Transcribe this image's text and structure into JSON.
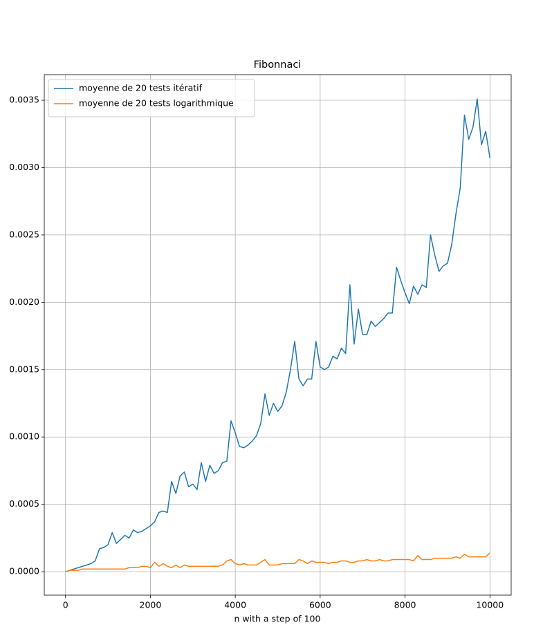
{
  "chart_data": {
    "type": "line",
    "title": "Fibonnaci",
    "xlabel": "n with a step of 100",
    "x": [
      0,
      100,
      200,
      300,
      400,
      500,
      600,
      700,
      800,
      900,
      1000,
      1100,
      1200,
      1300,
      1400,
      1500,
      1600,
      1700,
      1800,
      1900,
      2000,
      2100,
      2200,
      2300,
      2400,
      2500,
      2600,
      2700,
      2800,
      2900,
      3000,
      3100,
      3200,
      3300,
      3400,
      3500,
      3600,
      3700,
      3800,
      3900,
      4000,
      4100,
      4200,
      4300,
      4400,
      4500,
      4600,
      4700,
      4800,
      4900,
      5000,
      5100,
      5200,
      5300,
      5400,
      5500,
      5600,
      5700,
      5800,
      5900,
      6000,
      6100,
      6200,
      6300,
      6400,
      6500,
      6600,
      6700,
      6800,
      6900,
      7000,
      7100,
      7200,
      7300,
      7400,
      7500,
      7600,
      7700,
      7800,
      7900,
      8000,
      8100,
      8200,
      8300,
      8400,
      8500,
      8600,
      8700,
      8800,
      8900,
      9000,
      9100,
      9200,
      9300,
      9400,
      9500,
      9600,
      9700,
      9800,
      9900,
      10000
    ],
    "series": [
      {
        "name": "moyenne de 20 tests itératif",
        "color": "#1f77b4",
        "values": [
          0,
          1e-05,
          2e-05,
          3e-05,
          4e-05,
          5e-05,
          6e-05,
          8e-05,
          0.00017,
          0.00018,
          0.0002,
          0.00029,
          0.00021,
          0.00024,
          0.00027,
          0.00025,
          0.00031,
          0.00029,
          0.0003,
          0.00032,
          0.00034,
          0.00037,
          0.00044,
          0.00045,
          0.00044,
          0.00067,
          0.00058,
          0.00071,
          0.00074,
          0.00063,
          0.00065,
          0.00061,
          0.00081,
          0.00067,
          0.00079,
          0.00073,
          0.00075,
          0.00081,
          0.00082,
          0.00112,
          0.00103,
          0.00093,
          0.00092,
          0.00094,
          0.00097,
          0.00101,
          0.0011,
          0.00132,
          0.00116,
          0.00125,
          0.00119,
          0.00123,
          0.00133,
          0.0015,
          0.00171,
          0.00143,
          0.00138,
          0.00143,
          0.00143,
          0.00171,
          0.00152,
          0.0015,
          0.00152,
          0.0016,
          0.00158,
          0.00166,
          0.00162,
          0.00213,
          0.00169,
          0.00195,
          0.00176,
          0.00176,
          0.00186,
          0.00182,
          0.00185,
          0.00188,
          0.00192,
          0.00192,
          0.00226,
          0.00216,
          0.00207,
          0.00199,
          0.00212,
          0.00206,
          0.00213,
          0.00211,
          0.0025,
          0.00235,
          0.00223,
          0.00227,
          0.00229,
          0.00243,
          0.00266,
          0.00285,
          0.00339,
          0.00321,
          0.0033,
          0.00351,
          0.00317,
          0.00327,
          0.00307
        ]
      },
      {
        "name": "moyenne de 20 tests logarithmique",
        "color": "#ff7f0e",
        "values": [
          0,
          1e-05,
          1e-05,
          1e-05,
          2e-05,
          2e-05,
          2e-05,
          2e-05,
          2e-05,
          2e-05,
          2e-05,
          2e-05,
          2e-05,
          2e-05,
          2e-05,
          3e-05,
          3e-05,
          3e-05,
          4e-05,
          4e-05,
          3e-05,
          7e-05,
          4e-05,
          6e-05,
          4e-05,
          3e-05,
          5e-05,
          3e-05,
          5e-05,
          4e-05,
          4e-05,
          4e-05,
          4e-05,
          4e-05,
          4e-05,
          4e-05,
          4e-05,
          5e-05,
          8e-05,
          9e-05,
          6e-05,
          5e-05,
          6e-05,
          5e-05,
          5e-05,
          5e-05,
          7e-05,
          9e-05,
          5e-05,
          5e-05,
          5e-05,
          6e-05,
          6e-05,
          6e-05,
          6e-05,
          9e-05,
          8e-05,
          6e-05,
          8e-05,
          7e-05,
          7e-05,
          7e-05,
          6e-05,
          7e-05,
          7e-05,
          8e-05,
          8e-05,
          7e-05,
          7e-05,
          8e-05,
          8e-05,
          9e-05,
          8e-05,
          8e-05,
          9e-05,
          8e-05,
          8e-05,
          9e-05,
          9e-05,
          9e-05,
          9e-05,
          9e-05,
          8e-05,
          0.00012,
          9e-05,
          9e-05,
          9e-05,
          0.0001,
          0.0001,
          0.0001,
          0.0001,
          0.0001,
          0.00011,
          0.0001,
          0.00013,
          0.00011,
          0.00011,
          0.00011,
          0.00011,
          0.00011,
          0.00014
        ]
      }
    ],
    "xlim": [
      -500,
      10500
    ],
    "ylim": [
      -0.000174,
      0.00369
    ],
    "xticks": [
      0,
      2000,
      4000,
      6000,
      8000,
      10000
    ],
    "yticks": [
      {
        "value": 0,
        "label": "0.0000"
      },
      {
        "value": 0.0005,
        "label": "0.0005"
      },
      {
        "value": 0.001,
        "label": "0.0010"
      },
      {
        "value": 0.0015,
        "label": "0.0015"
      },
      {
        "value": 0.002,
        "label": "0.0020"
      },
      {
        "value": 0.0025,
        "label": "0.0025"
      },
      {
        "value": 0.003,
        "label": "0.0030"
      },
      {
        "value": 0.0035,
        "label": "0.0035"
      }
    ],
    "grid": true,
    "legend": "upper left"
  }
}
